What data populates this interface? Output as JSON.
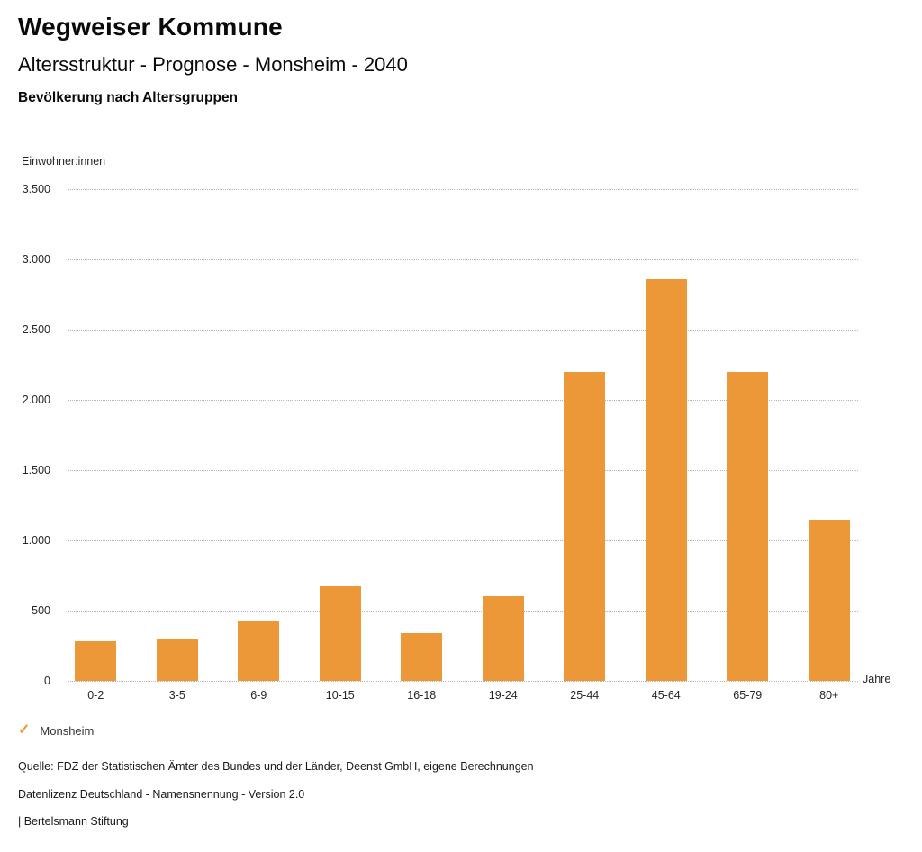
{
  "header": {
    "title": "Wegweiser Kommune",
    "subtitle": "Altersstruktur - Prognose - Monsheim - 2040",
    "chart_heading": "Bevölkerung nach Altersgruppen"
  },
  "chart_data": {
    "type": "bar",
    "title": "Bevölkerung nach Altersgruppen",
    "xlabel": "Jahre",
    "ylabel": "Einwohner:innen",
    "categories": [
      "0-2",
      "3-5",
      "6-9",
      "10-15",
      "16-18",
      "19-24",
      "25-44",
      "45-64",
      "65-79",
      "80+"
    ],
    "series": [
      {
        "name": "Monsheim",
        "values": [
          280,
          295,
          425,
          675,
          340,
          600,
          2200,
          2860,
          2200,
          1145
        ]
      }
    ],
    "ylim": [
      0,
      3500
    ],
    "ytick_step": 500,
    "ytick_labels": [
      "0",
      "500",
      "1.000",
      "1.500",
      "2.000",
      "2.500",
      "3.000",
      "3.500"
    ],
    "grid": "horizontal dotted",
    "legend_position": "bottom-left"
  },
  "legend": {
    "check_icon": "✓",
    "label": "Monsheim"
  },
  "footer": {
    "source": "Quelle: FDZ der Statistischen Ämter des Bundes und der Länder, Deenst GmbH, eigene Berechnungen",
    "license": "Datenlizenz Deutschland - Namensnennung - Version 2.0",
    "attribution": "| Bertelsmann Stiftung"
  },
  "colors": {
    "bar": "#ec9838",
    "grid": "#b6b6b6",
    "text": "#1a1a1a"
  }
}
